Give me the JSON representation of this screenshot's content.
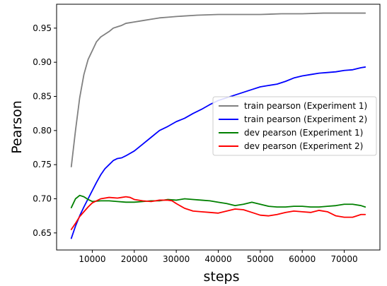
{
  "chart_data": {
    "type": "line",
    "title": "",
    "xlabel": "steps",
    "ylabel": "Pearson",
    "xlim": [
      1500,
      78500
    ],
    "ylim": [
      0.625,
      0.985
    ],
    "xticks": [
      10000,
      20000,
      30000,
      40000,
      50000,
      60000,
      70000
    ],
    "xtick_labels": [
      "10000",
      "20000",
      "30000",
      "40000",
      "50000",
      "60000",
      "70000"
    ],
    "yticks": [
      0.65,
      0.7,
      0.75,
      0.8,
      0.85,
      0.9,
      0.95
    ],
    "ytick_labels": [
      "0.65",
      "0.70",
      "0.75",
      "0.80",
      "0.85",
      "0.90",
      "0.95"
    ],
    "grid": false,
    "legend_position": "center-right",
    "series": [
      {
        "name": "train pearson (Experiment 1)",
        "color": "#808080",
        "x": [
          5000,
          6000,
          7000,
          8000,
          9000,
          10000,
          11000,
          12000,
          13000,
          14000,
          15000,
          16000,
          17000,
          18000,
          20000,
          22000,
          24000,
          26000,
          28000,
          30000,
          35000,
          40000,
          45000,
          50000,
          55000,
          60000,
          65000,
          70000,
          75000
        ],
        "values": [
          0.747,
          0.8,
          0.848,
          0.882,
          0.904,
          0.917,
          0.93,
          0.937,
          0.941,
          0.945,
          0.95,
          0.952,
          0.954,
          0.957,
          0.959,
          0.961,
          0.963,
          0.965,
          0.966,
          0.967,
          0.969,
          0.97,
          0.97,
          0.97,
          0.971,
          0.971,
          0.972,
          0.972,
          0.972
        ]
      },
      {
        "name": "train pearson (Experiment 2)",
        "color": "#0000ff",
        "x": [
          5000,
          6000,
          7000,
          8000,
          9000,
          10000,
          11000,
          12000,
          13000,
          14000,
          15000,
          16000,
          17000,
          18000,
          20000,
          22000,
          24000,
          26000,
          28000,
          30000,
          32000,
          34000,
          36000,
          38000,
          40000,
          42000,
          44000,
          46000,
          48000,
          50000,
          52000,
          54000,
          56000,
          58000,
          60000,
          62000,
          64000,
          66000,
          68000,
          70000,
          72000,
          74000,
          75000
        ],
        "values": [
          0.642,
          0.66,
          0.675,
          0.688,
          0.7,
          0.712,
          0.724,
          0.735,
          0.744,
          0.75,
          0.756,
          0.759,
          0.76,
          0.763,
          0.77,
          0.78,
          0.79,
          0.8,
          0.806,
          0.813,
          0.818,
          0.825,
          0.831,
          0.838,
          0.844,
          0.848,
          0.852,
          0.856,
          0.86,
          0.864,
          0.866,
          0.868,
          0.872,
          0.877,
          0.88,
          0.882,
          0.884,
          0.885,
          0.886,
          0.888,
          0.889,
          0.892,
          0.893
        ]
      },
      {
        "name": "dev pearson (Experiment 1)",
        "color": "#008000",
        "x": [
          5000,
          6000,
          7000,
          8000,
          9000,
          10000,
          12000,
          14000,
          16000,
          18000,
          20000,
          22000,
          24000,
          26000,
          28000,
          30000,
          32000,
          34000,
          36000,
          38000,
          40000,
          42000,
          44000,
          46000,
          48000,
          50000,
          52000,
          54000,
          56000,
          58000,
          60000,
          62000,
          64000,
          66000,
          68000,
          70000,
          72000,
          74000,
          75000
        ],
        "values": [
          0.687,
          0.7,
          0.705,
          0.703,
          0.699,
          0.696,
          0.697,
          0.697,
          0.696,
          0.695,
          0.695,
          0.696,
          0.697,
          0.697,
          0.699,
          0.698,
          0.7,
          0.699,
          0.698,
          0.697,
          0.695,
          0.693,
          0.69,
          0.692,
          0.695,
          0.692,
          0.689,
          0.688,
          0.688,
          0.689,
          0.689,
          0.688,
          0.688,
          0.689,
          0.69,
          0.692,
          0.692,
          0.69,
          0.688
        ]
      },
      {
        "name": "dev pearson (Experiment 2)",
        "color": "#ff0000",
        "x": [
          5000,
          6000,
          7000,
          8000,
          9000,
          10000,
          12000,
          14000,
          16000,
          17000,
          18000,
          19000,
          20000,
          22000,
          24000,
          26000,
          28000,
          29000,
          30000,
          32000,
          34000,
          36000,
          38000,
          40000,
          42000,
          44000,
          46000,
          48000,
          50000,
          52000,
          54000,
          56000,
          58000,
          60000,
          62000,
          64000,
          66000,
          68000,
          70000,
          72000,
          74000,
          75000
        ],
        "values": [
          0.655,
          0.664,
          0.674,
          0.681,
          0.688,
          0.694,
          0.7,
          0.702,
          0.701,
          0.702,
          0.703,
          0.702,
          0.699,
          0.697,
          0.696,
          0.698,
          0.698,
          0.697,
          0.693,
          0.686,
          0.682,
          0.681,
          0.68,
          0.679,
          0.682,
          0.685,
          0.684,
          0.68,
          0.676,
          0.675,
          0.677,
          0.68,
          0.682,
          0.681,
          0.68,
          0.683,
          0.681,
          0.675,
          0.673,
          0.673,
          0.677,
          0.677
        ]
      }
    ]
  }
}
